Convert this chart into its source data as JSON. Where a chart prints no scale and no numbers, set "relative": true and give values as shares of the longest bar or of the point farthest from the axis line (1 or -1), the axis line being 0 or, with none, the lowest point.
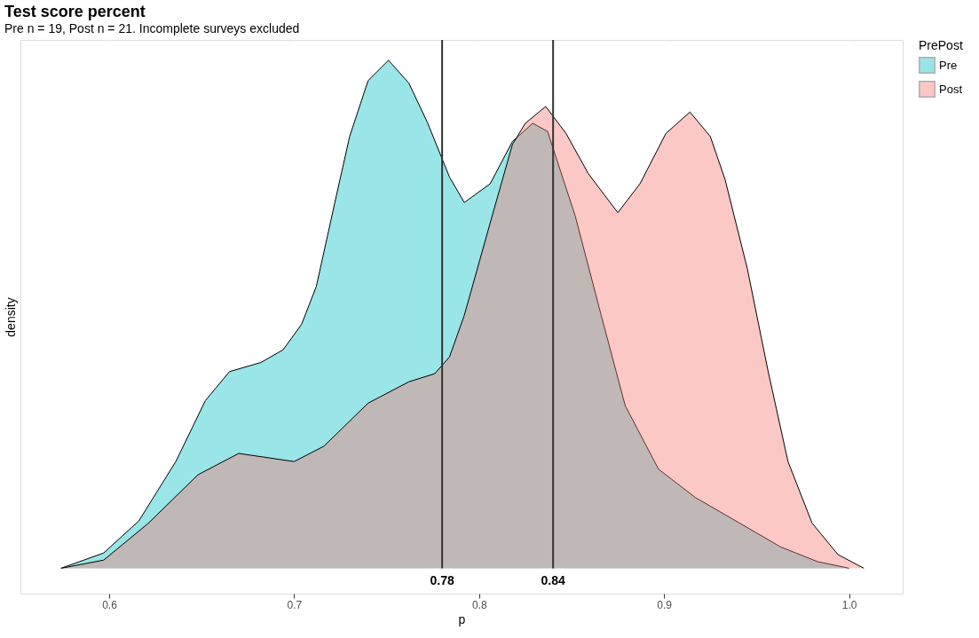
{
  "chart_data": {
    "type": "area",
    "title": "Test score percent",
    "subtitle": "Pre n = 19, Post n = 21. Incomplete surveys excluded",
    "xlabel": "p",
    "ylabel": "density",
    "legend_title": "PrePost",
    "relative": true,
    "xlim": [
      0.552,
      1.029
    ],
    "xticks": [
      0.6,
      0.7,
      0.8,
      0.9,
      {
        "value": 1.0,
        "label": "1.0"
      }
    ],
    "grid": "x",
    "legend": "right",
    "series": [
      {
        "name": "Pre",
        "color": "#00bfc4",
        "x": [
          0.574,
          0.597,
          0.616,
          0.636,
          0.652,
          0.665,
          0.682,
          0.694,
          0.704,
          0.712,
          0.722,
          0.73,
          0.74,
          0.751,
          0.762,
          0.772,
          0.784,
          0.792,
          0.806,
          0.818,
          0.829,
          0.837,
          0.852,
          0.866,
          0.879,
          0.897,
          0.917,
          0.937,
          0.963,
          0.983,
          1.0
        ],
        "values": [
          0,
          0.03,
          0.093,
          0.21,
          0.33,
          0.387,
          0.405,
          0.43,
          0.48,
          0.555,
          0.72,
          0.85,
          0.96,
          1.0,
          0.955,
          0.878,
          0.77,
          0.72,
          0.757,
          0.84,
          0.876,
          0.86,
          0.693,
          0.498,
          0.32,
          0.195,
          0.139,
          0.097,
          0.042,
          0.013,
          0
        ]
      },
      {
        "name": "Post",
        "color": "#f8766d",
        "x": [
          0.574,
          0.597,
          0.621,
          0.648,
          0.67,
          0.7,
          0.716,
          0.74,
          0.762,
          0.776,
          0.784,
          0.792,
          0.806,
          0.818,
          0.825,
          0.836,
          0.847,
          0.859,
          0.875,
          0.887,
          0.901,
          0.914,
          0.925,
          0.933,
          0.945,
          0.956,
          0.967,
          0.98,
          0.994,
          1.008
        ],
        "values": [
          0,
          0.016,
          0.088,
          0.184,
          0.226,
          0.21,
          0.24,
          0.325,
          0.367,
          0.383,
          0.416,
          0.498,
          0.68,
          0.834,
          0.876,
          0.909,
          0.856,
          0.777,
          0.7,
          0.757,
          0.856,
          0.898,
          0.85,
          0.765,
          0.59,
          0.392,
          0.21,
          0.089,
          0.027,
          0
        ]
      }
    ],
    "ref_lines": [
      {
        "axis": "x",
        "value": 0.78,
        "label": "0.78",
        "color": "#333333"
      },
      {
        "axis": "x",
        "value": 0.84,
        "label": "0.84",
        "color": "#333333"
      }
    ]
  }
}
